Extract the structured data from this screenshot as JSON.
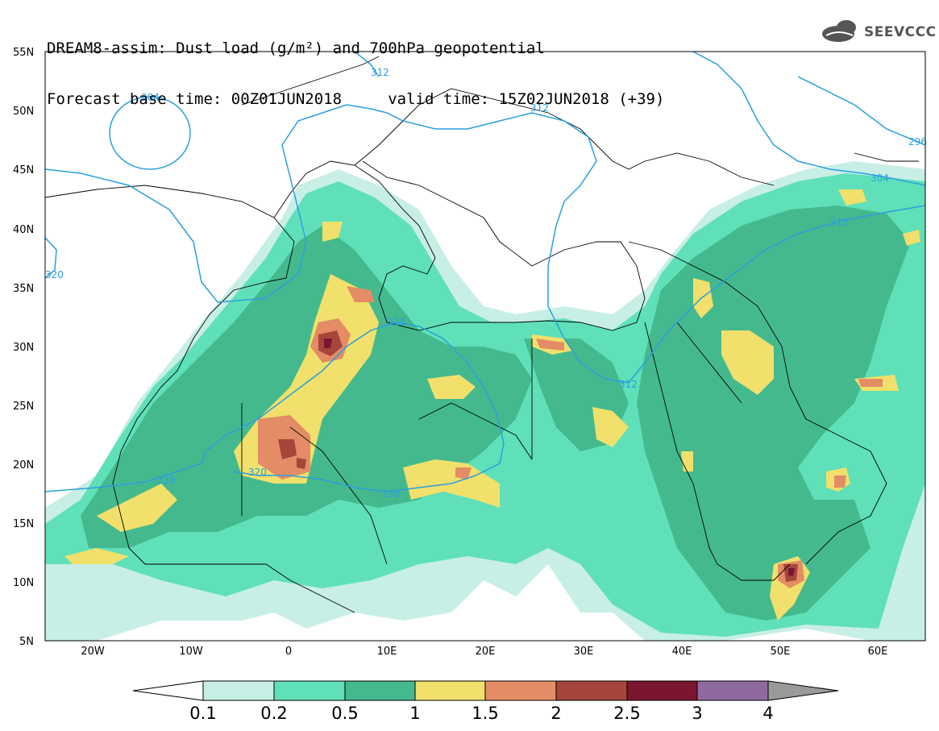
{
  "header": {
    "title_line1": "DREAM8-assim: Dust load (g/m²) and 700hPa geopotential",
    "title_line2": "Forecast base time: 00Z01JUN2018     valid time: 15Z02JUN2018 (+39)",
    "logo_text": "SEEVCCC"
  },
  "axes": {
    "lat_labels": [
      "55N",
      "50N",
      "45N",
      "40N",
      "35N",
      "30N",
      "25N",
      "20N",
      "15N",
      "10N",
      "5N"
    ],
    "lon_labels": [
      "20W",
      "10W",
      "0",
      "10E",
      "20E",
      "30E",
      "40E",
      "50E",
      "60E"
    ]
  },
  "contours": {
    "labels": [
      "304",
      "312",
      "312",
      "320",
      "320",
      "320",
      "312",
      "312",
      "304",
      "296",
      "320",
      "320"
    ]
  },
  "colorbar": {
    "labels": [
      "0.1",
      "0.2",
      "0.5",
      "1",
      "1.5",
      "2",
      "2.5",
      "3",
      "4"
    ],
    "colors": [
      "#c7efe6",
      "#5fe0b8",
      "#45b98e",
      "#f1e06b",
      "#e38c65",
      "#a6453a",
      "#7a1630",
      "#8f6aa0"
    ],
    "over_color": "#9a9a9a"
  },
  "colors": {
    "contour_line": "#2a9fe0",
    "coastline": "#000000"
  }
}
